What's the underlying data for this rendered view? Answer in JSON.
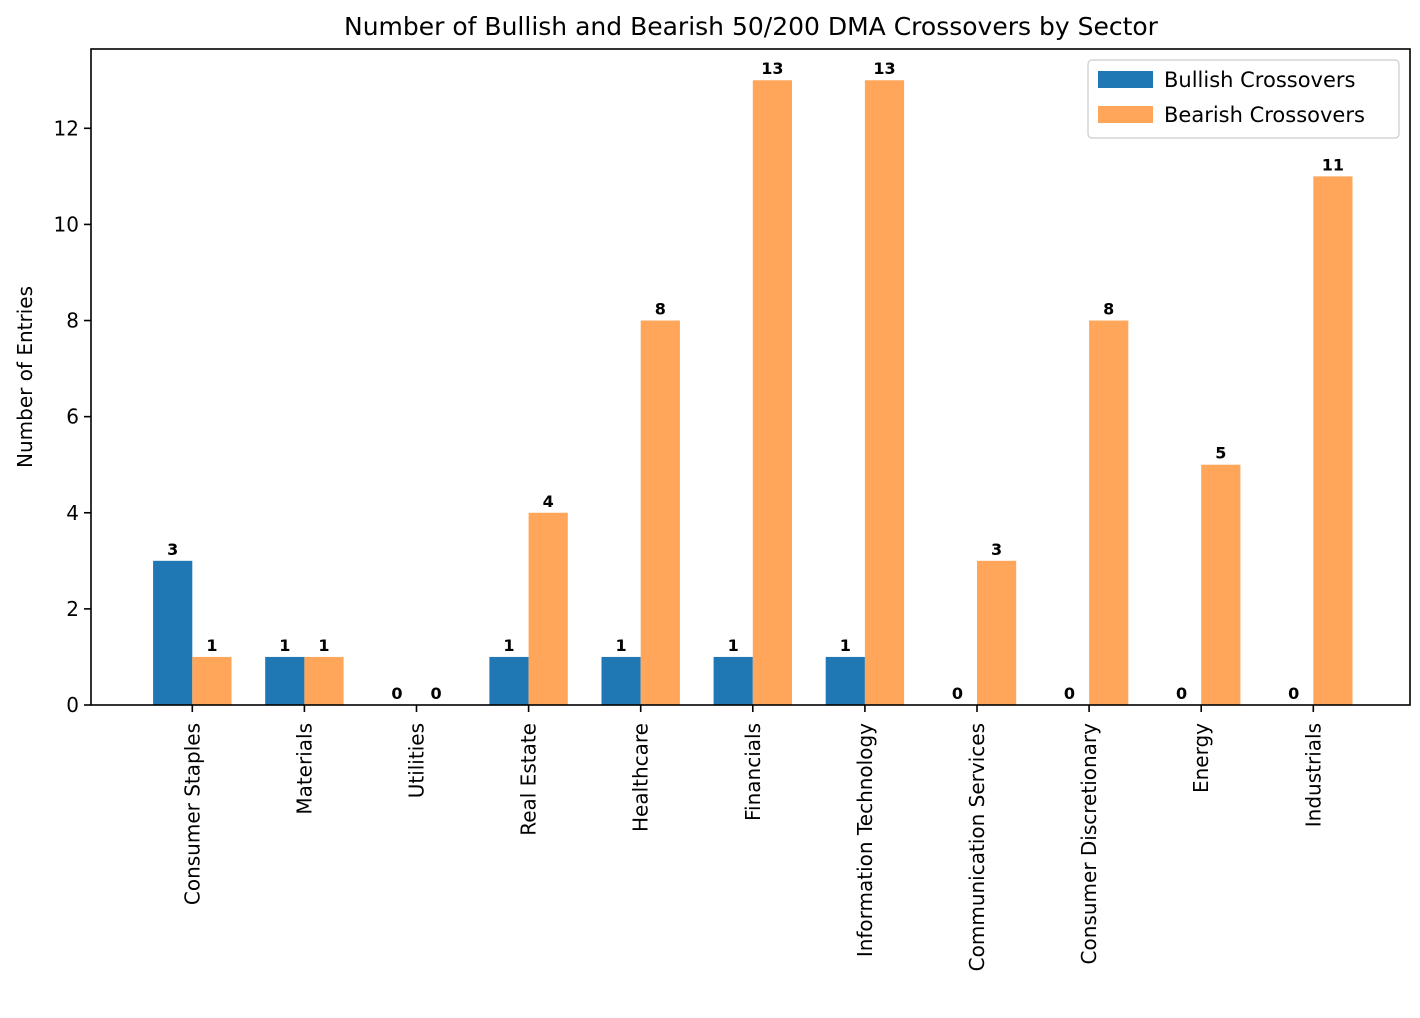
{
  "chart_data": {
    "type": "bar",
    "title": "Number of Bullish and Bearish 50/200 DMA Crossovers by Sector",
    "xlabel": "",
    "ylabel": "Number of Entries",
    "categories": [
      "Consumer Staples",
      "Materials",
      "Utilities",
      "Real Estate",
      "Healthcare",
      "Financials",
      "Information Technology",
      "Communication Services",
      "Consumer Discretionary",
      "Energy",
      "Industrials"
    ],
    "series": [
      {
        "name": "Bullish Crossovers",
        "color": "#1f77b4",
        "values": [
          3,
          1,
          0,
          1,
          1,
          1,
          1,
          0,
          0,
          0,
          0
        ]
      },
      {
        "name": "Bearish Crossovers",
        "color": "#ffa65a",
        "values": [
          1,
          1,
          0,
          4,
          8,
          13,
          13,
          3,
          8,
          5,
          11
        ]
      }
    ],
    "ylim": [
      0,
      13.65
    ],
    "yticks": [
      0,
      2,
      4,
      6,
      8,
      10,
      12
    ],
    "legend_position": "top-right",
    "grid": false,
    "data_labels": true
  }
}
